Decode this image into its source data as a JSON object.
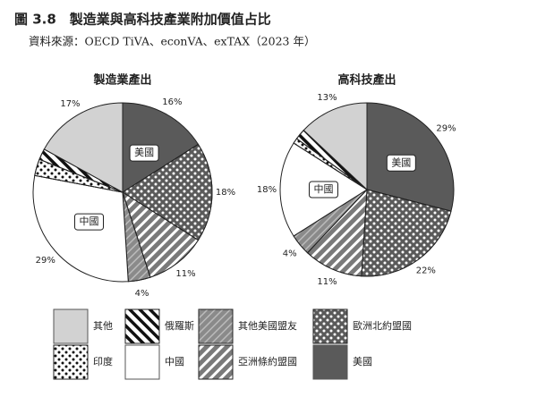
{
  "chart_data": {
    "type": "pie",
    "title": "圖 3.8　製造業與高科技產業附加價值占比",
    "subtitle": "資料來源：OECD TiVA、econVA、exTAX（2023 年）",
    "categories": [
      "美國",
      "歐洲北約盟國",
      "亞洲條約盟國",
      "其他美國盟友",
      "中國",
      "印度",
      "俄羅斯",
      "其他"
    ],
    "colors": [
      "#5a5a5a",
      "#5a5a5a",
      "#7a7a7a",
      "#8a8a8a",
      "#ffffff",
      "#ffffff",
      "#ffffff",
      "#d2d2d2"
    ],
    "pies": [
      {
        "title": "製造業產出",
        "values": [
          16,
          18,
          11,
          4,
          29,
          3,
          2,
          17
        ],
        "value_labels": [
          "16%",
          "18%",
          "11%",
          "4%",
          "29%",
          null,
          null,
          "17%"
        ]
      },
      {
        "title": "高科技產出",
        "values": [
          29,
          22,
          11,
          4,
          18,
          1,
          2,
          13
        ],
        "value_labels": [
          "29%",
          "22%",
          "11%",
          "4%",
          "18%",
          null,
          null,
          "13%"
        ]
      }
    ]
  }
}
